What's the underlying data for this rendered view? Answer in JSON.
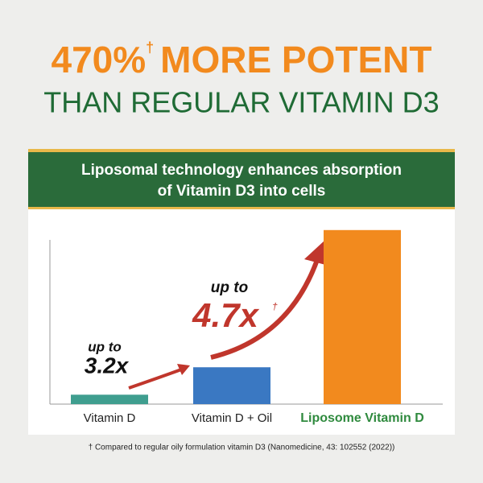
{
  "chart_data": {
    "type": "bar",
    "title": "470%",
    "title_mark": "†",
    "title_rest": "MORE POTENT",
    "subtitle": "THAN REGULAR VITAMIN D3",
    "banner": [
      "Liposomal technology enhances absorption",
      "of Vitamin D3 into cells"
    ],
    "categories": [
      "Vitamin D",
      "Vitamin D + Oil",
      "Liposome Vitamin D"
    ],
    "values": [
      12,
      47,
      222
    ],
    "colors": [
      "#3f9e8f",
      "#3a78c2",
      "#f28a1e"
    ],
    "ylim": [
      0,
      230
    ],
    "annotations": [
      {
        "prefix": "up to",
        "value": "3.2x"
      },
      {
        "prefix": "up to",
        "value": "4.7x",
        "mark": "†"
      }
    ],
    "footnote": "† Compared to regular oily formulation vitamin D3 (Nanomedicine, 43: 102552 (2022))"
  }
}
